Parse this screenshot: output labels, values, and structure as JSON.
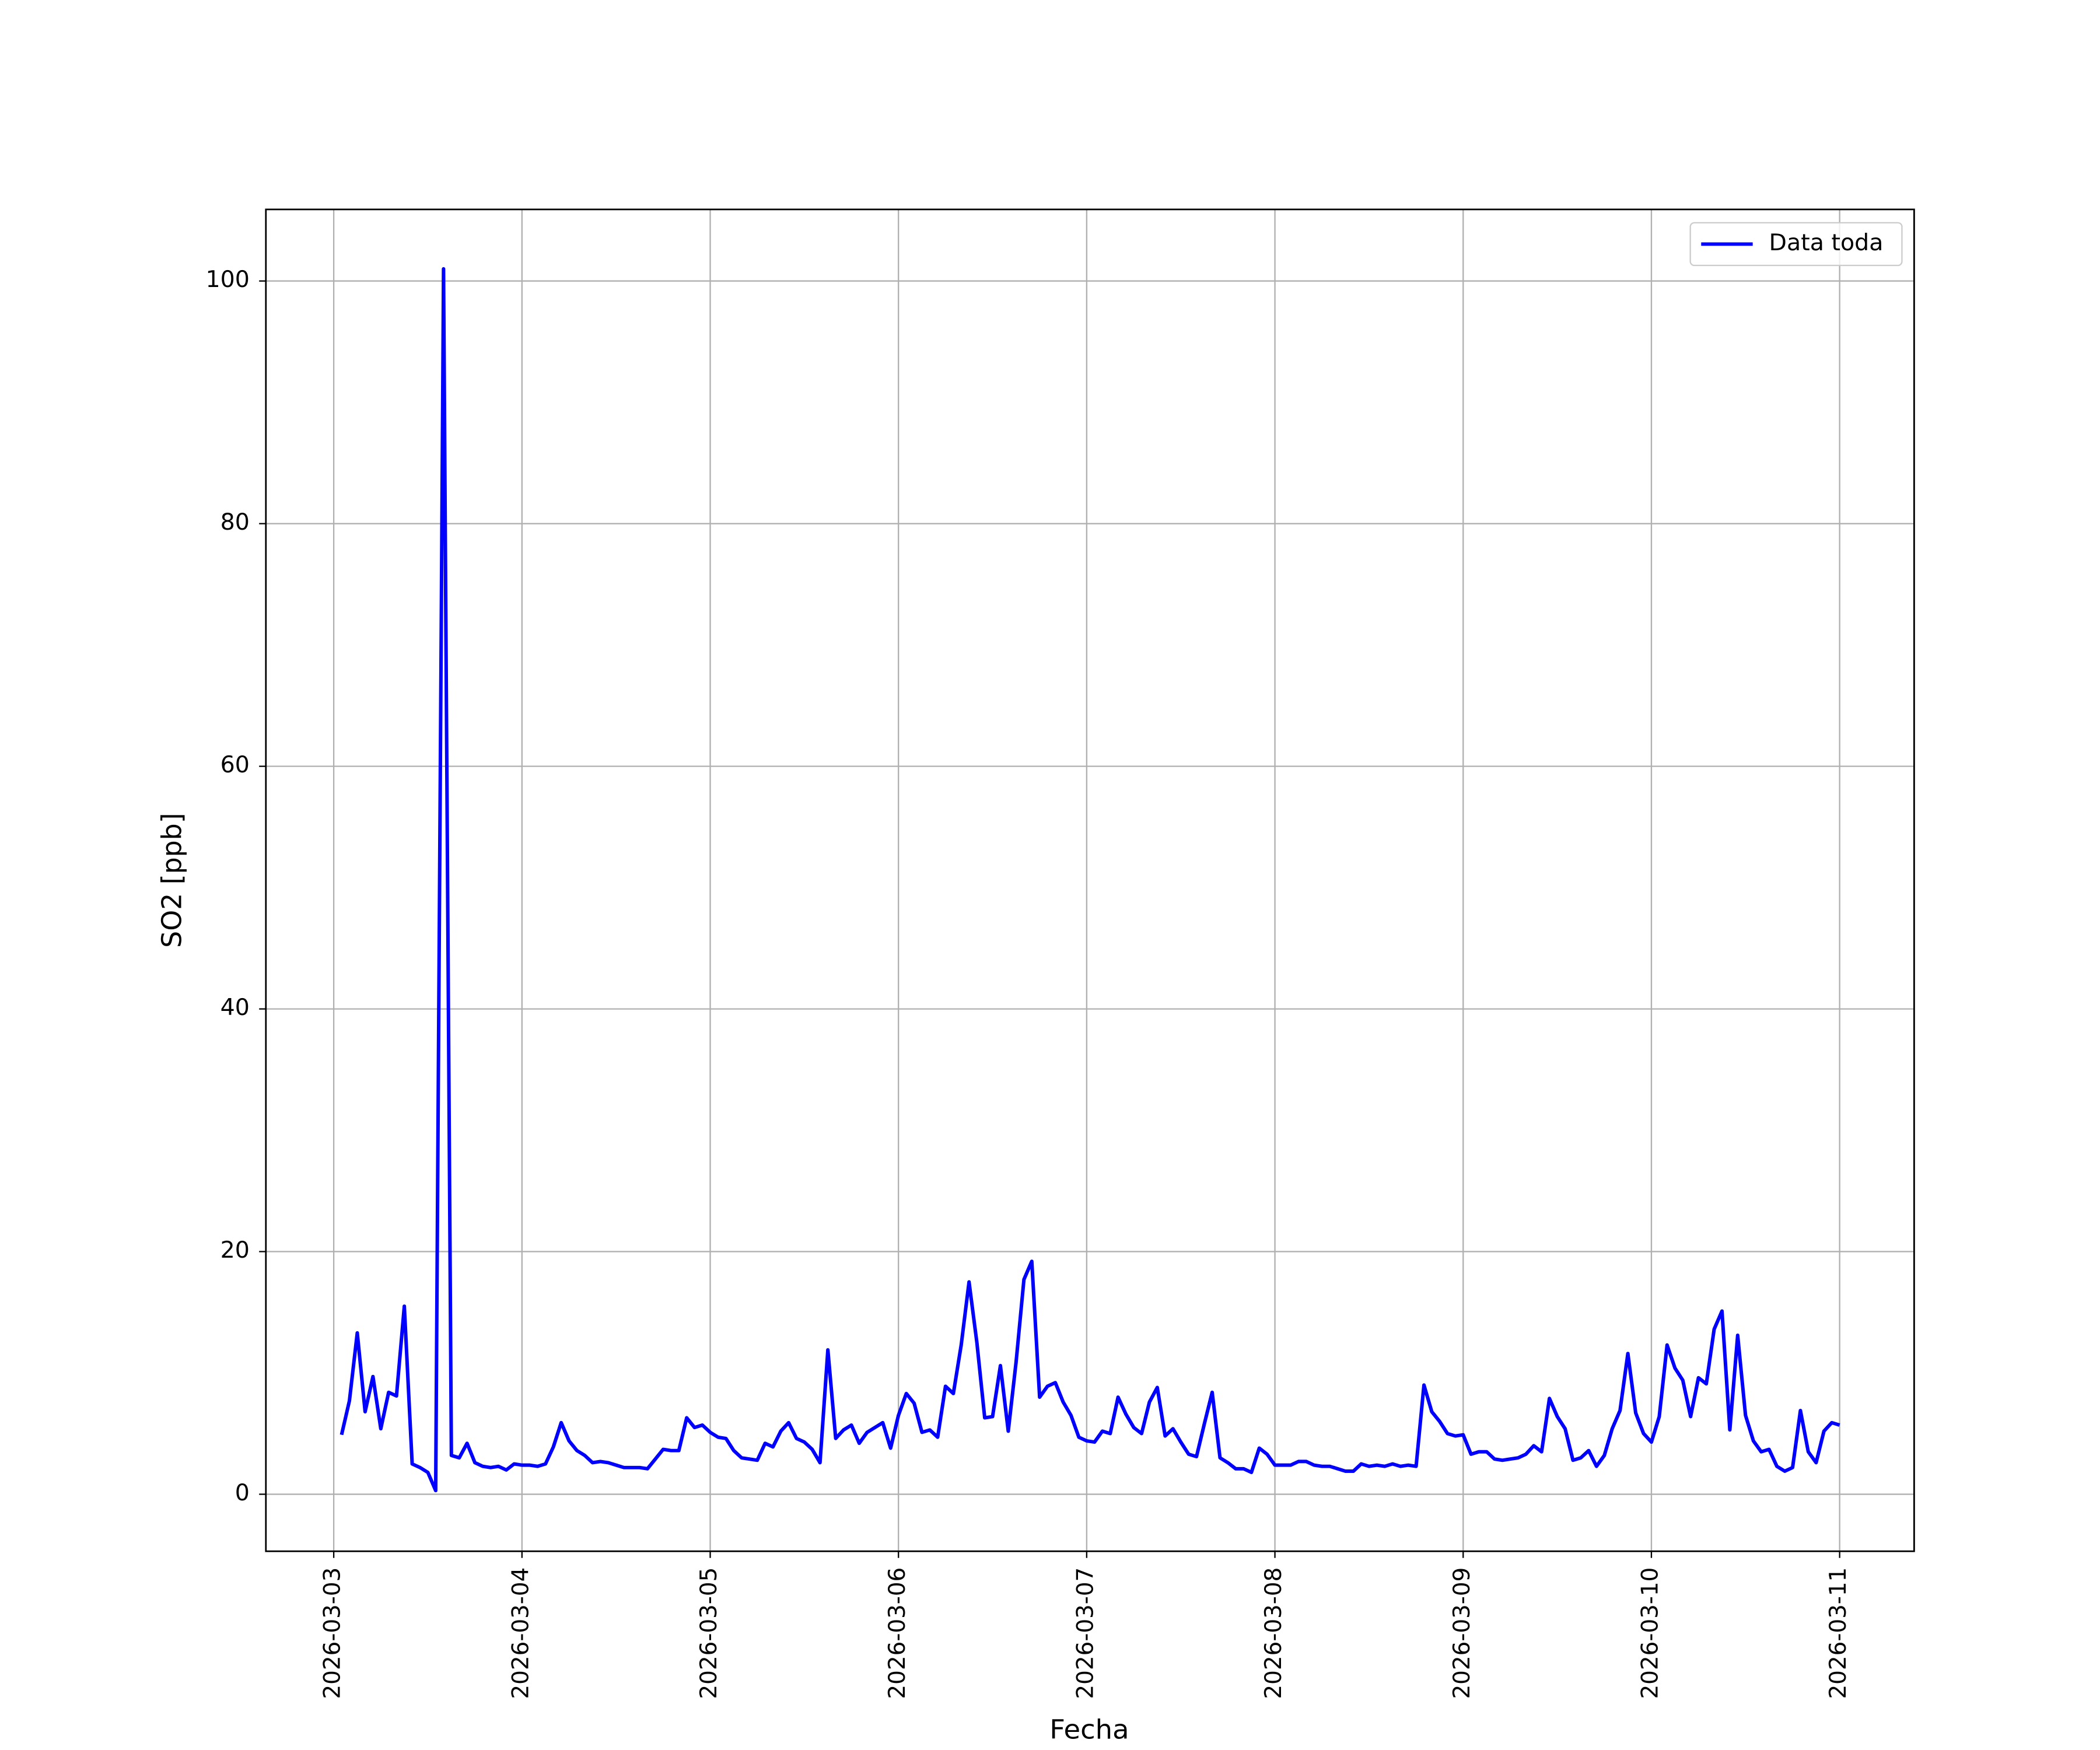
{
  "chart_data": {
    "type": "line",
    "xlabel": "Fecha",
    "ylabel": "SO2 [ppb]",
    "x": [
      "2026-03-03 01:00",
      "2026-03-03 02:00",
      "2026-03-03 03:00",
      "2026-03-03 04:00",
      "2026-03-03 05:00",
      "2026-03-03 06:00",
      "2026-03-03 07:00",
      "2026-03-03 08:00",
      "2026-03-03 09:00",
      "2026-03-03 10:00",
      "2026-03-03 11:00",
      "2026-03-03 12:00",
      "2026-03-03 13:00",
      "2026-03-03 14:00",
      "2026-03-03 15:00",
      "2026-03-03 16:00",
      "2026-03-03 17:00",
      "2026-03-03 18:00",
      "2026-03-03 19:00",
      "2026-03-03 20:00",
      "2026-03-03 21:00",
      "2026-03-03 22:00",
      "2026-03-03 23:00",
      "2026-03-04 00:00",
      "2026-03-04 01:00",
      "2026-03-04 02:00",
      "2026-03-04 03:00",
      "2026-03-04 04:00",
      "2026-03-04 05:00",
      "2026-03-04 06:00",
      "2026-03-04 07:00",
      "2026-03-04 08:00",
      "2026-03-04 09:00",
      "2026-03-04 10:00",
      "2026-03-04 11:00",
      "2026-03-04 12:00",
      "2026-03-04 13:00",
      "2026-03-04 14:00",
      "2026-03-04 15:00",
      "2026-03-04 16:00",
      "2026-03-04 17:00",
      "2026-03-04 18:00",
      "2026-03-04 19:00",
      "2026-03-04 20:00",
      "2026-03-04 21:00",
      "2026-03-04 22:00",
      "2026-03-04 23:00",
      "2026-03-05 00:00",
      "2026-03-05 01:00",
      "2026-03-05 02:00",
      "2026-03-05 03:00",
      "2026-03-05 04:00",
      "2026-03-05 05:00",
      "2026-03-05 06:00",
      "2026-03-05 07:00",
      "2026-03-05 08:00",
      "2026-03-05 09:00",
      "2026-03-05 10:00",
      "2026-03-05 11:00",
      "2026-03-05 12:00",
      "2026-03-05 13:00",
      "2026-03-05 14:00",
      "2026-03-05 15:00",
      "2026-03-05 16:00",
      "2026-03-05 17:00",
      "2026-03-05 18:00",
      "2026-03-05 19:00",
      "2026-03-05 20:00",
      "2026-03-05 21:00",
      "2026-03-05 22:00",
      "2026-03-05 23:00",
      "2026-03-06 00:00",
      "2026-03-06 01:00",
      "2026-03-06 02:00",
      "2026-03-06 03:00",
      "2026-03-06 04:00",
      "2026-03-06 05:00",
      "2026-03-06 06:00",
      "2026-03-06 07:00",
      "2026-03-06 08:00",
      "2026-03-06 09:00",
      "2026-03-06 10:00",
      "2026-03-06 11:00",
      "2026-03-06 12:00",
      "2026-03-06 13:00",
      "2026-03-06 14:00",
      "2026-03-06 15:00",
      "2026-03-06 16:00",
      "2026-03-06 17:00",
      "2026-03-06 18:00",
      "2026-03-06 19:00",
      "2026-03-06 20:00",
      "2026-03-06 21:00",
      "2026-03-06 22:00",
      "2026-03-06 23:00",
      "2026-03-07 00:00",
      "2026-03-07 01:00",
      "2026-03-07 02:00",
      "2026-03-07 03:00",
      "2026-03-07 04:00",
      "2026-03-07 05:00",
      "2026-03-07 06:00",
      "2026-03-07 07:00",
      "2026-03-07 08:00",
      "2026-03-07 09:00",
      "2026-03-07 10:00",
      "2026-03-07 11:00",
      "2026-03-07 12:00",
      "2026-03-07 13:00",
      "2026-03-07 14:00",
      "2026-03-07 15:00",
      "2026-03-07 16:00",
      "2026-03-07 17:00",
      "2026-03-07 18:00",
      "2026-03-07 19:00",
      "2026-03-07 20:00",
      "2026-03-07 21:00",
      "2026-03-07 22:00",
      "2026-03-07 23:00",
      "2026-03-08 00:00",
      "2026-03-08 01:00",
      "2026-03-08 02:00",
      "2026-03-08 03:00",
      "2026-03-08 04:00",
      "2026-03-08 05:00",
      "2026-03-08 06:00",
      "2026-03-08 07:00",
      "2026-03-08 08:00",
      "2026-03-08 09:00",
      "2026-03-08 10:00",
      "2026-03-08 11:00",
      "2026-03-08 12:00",
      "2026-03-08 13:00",
      "2026-03-08 14:00",
      "2026-03-08 15:00",
      "2026-03-08 16:00",
      "2026-03-08 17:00",
      "2026-03-08 18:00",
      "2026-03-08 19:00",
      "2026-03-08 20:00",
      "2026-03-08 21:00",
      "2026-03-08 22:00",
      "2026-03-08 23:00",
      "2026-03-09 00:00",
      "2026-03-09 01:00",
      "2026-03-09 02:00",
      "2026-03-09 03:00",
      "2026-03-09 04:00",
      "2026-03-09 05:00",
      "2026-03-09 06:00",
      "2026-03-09 07:00",
      "2026-03-09 08:00",
      "2026-03-09 09:00",
      "2026-03-09 10:00",
      "2026-03-09 11:00",
      "2026-03-09 12:00",
      "2026-03-09 13:00",
      "2026-03-09 14:00",
      "2026-03-09 15:00",
      "2026-03-09 16:00",
      "2026-03-09 17:00",
      "2026-03-09 18:00",
      "2026-03-09 19:00",
      "2026-03-09 20:00",
      "2026-03-09 21:00",
      "2026-03-09 22:00",
      "2026-03-09 23:00",
      "2026-03-10 00:00",
      "2026-03-10 01:00",
      "2026-03-10 02:00",
      "2026-03-10 03:00",
      "2026-03-10 04:00",
      "2026-03-10 05:00",
      "2026-03-10 06:00",
      "2026-03-10 07:00",
      "2026-03-10 08:00",
      "2026-03-10 09:00",
      "2026-03-10 10:00",
      "2026-03-10 11:00",
      "2026-03-10 12:00",
      "2026-03-10 13:00",
      "2026-03-10 14:00",
      "2026-03-10 15:00",
      "2026-03-10 16:00",
      "2026-03-10 17:00",
      "2026-03-10 18:00",
      "2026-03-10 19:00",
      "2026-03-10 20:00",
      "2026-03-10 21:00",
      "2026-03-10 22:00",
      "2026-03-10 23:00",
      "2026-03-11 00:00"
    ],
    "series": [
      {
        "name": "Data toda",
        "color": "#0000ff",
        "values": [
          4.9,
          7.7,
          13.3,
          6.8,
          9.7,
          5.4,
          8.4,
          8.1,
          15.5,
          2.5,
          2.2,
          1.8,
          0.3,
          101,
          3.2,
          3.0,
          4.2,
          2.6,
          2.3,
          2.2,
          2.3,
          2.0,
          2.5,
          2.4,
          2.4,
          2.3,
          2.5,
          3.9,
          5.9,
          4.4,
          3.6,
          3.2,
          2.6,
          2.7,
          2.6,
          2.4,
          2.2,
          2.2,
          2.2,
          2.1,
          2.9,
          3.7,
          3.6,
          3.6,
          6.3,
          5.5,
          5.7,
          5.1,
          4.7,
          4.6,
          3.6,
          3.0,
          2.9,
          2.8,
          4.2,
          3.9,
          5.2,
          5.9,
          4.6,
          4.3,
          3.7,
          2.6,
          11.9,
          4.6,
          5.3,
          5.7,
          4.2,
          5.1,
          5.5,
          5.9,
          3.8,
          6.5,
          8.3,
          7.5,
          5.1,
          5.3,
          4.7,
          8.9,
          8.3,
          12.3,
          17.5,
          12.5,
          6.3,
          6.4,
          10.6,
          5.2,
          10.9,
          17.7,
          19.2,
          8.0,
          8.9,
          9.2,
          7.6,
          6.5,
          4.7,
          4.4,
          4.3,
          5.2,
          5.0,
          8.0,
          6.6,
          5.5,
          5.0,
          7.6,
          8.8,
          4.8,
          5.4,
          4.3,
          3.3,
          3.1,
          5.8,
          8.4,
          3.0,
          2.6,
          2.1,
          2.1,
          1.8,
          3.8,
          3.3,
          2.4,
          2.4,
          2.4,
          2.7,
          2.7,
          2.4,
          2.3,
          2.3,
          2.1,
          1.9,
          1.9,
          2.5,
          2.3,
          2.4,
          2.3,
          2.5,
          2.3,
          2.4,
          2.3,
          9.0,
          6.8,
          6.0,
          5.0,
          4.8,
          4.9,
          3.3,
          3.5,
          3.5,
          2.9,
          2.8,
          2.9,
          3.0,
          3.3,
          4.0,
          3.5,
          7.9,
          6.4,
          5.4,
          2.8,
          3.0,
          3.6,
          2.3,
          3.2,
          5.4,
          6.9,
          11.6,
          6.7,
          5.0,
          4.3,
          6.4,
          12.3,
          10.4,
          9.4,
          6.4,
          9.6,
          9.1,
          13.6,
          15.1,
          5.3,
          13.1,
          6.5,
          4.4,
          3.5,
          3.7,
          2.3,
          1.9,
          2.2,
          6.9,
          3.5,
          2.6,
          5.2,
          5.9,
          5.7
        ]
      }
    ],
    "xlim": [
      "2026-03-02 15:21",
      "2026-03-11 09:30"
    ],
    "xticks": [
      "2026-03-03",
      "2026-03-04",
      "2026-03-05",
      "2026-03-06",
      "2026-03-07",
      "2026-03-08",
      "2026-03-09",
      "2026-03-10",
      "2026-03-11"
    ],
    "ylim": [
      -4.7,
      105.9
    ],
    "yticks": [
      0,
      20,
      40,
      60,
      80,
      100
    ],
    "grid": true,
    "legend": "upper right"
  }
}
